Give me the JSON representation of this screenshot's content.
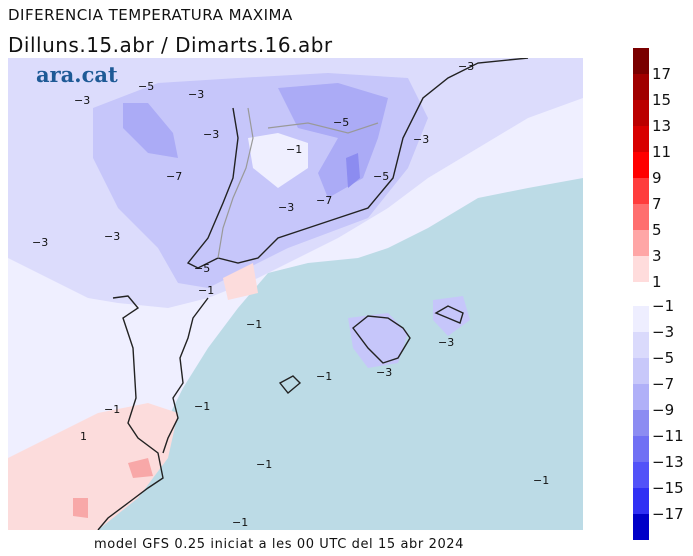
{
  "title": "DIFERENCIA TEMPERATURA MAXIMA",
  "subtitle": "Dilluns.15.abr / Dimarts.16.abr",
  "footer": "model GFS 0.25 iniciat a les 00 UTC del 15 abr 2024",
  "logo": "ara.cat",
  "colors": {
    "sea": "#bcdbe6",
    "n1": "#efefff",
    "n3": "#dcdcfc",
    "n5": "#c6c6fa",
    "n7": "#ababf6",
    "n9": "#8c8cf0",
    "p1": "#fcdcdc",
    "p3": "#f8a8a8",
    "p5": "#f07070"
  },
  "legend": {
    "ticks": [
      "17",
      "15",
      "13",
      "11",
      "9",
      "7",
      "5",
      "3",
      "1",
      "−1",
      "−3",
      "−5",
      "−7",
      "−9",
      "−11",
      "−13",
      "−15",
      "−17"
    ],
    "red_colors": [
      "#7a0000",
      "#a00000",
      "#bb0000",
      "#d80000",
      "#ff0000",
      "#ff3c3c",
      "#ff6e6e",
      "#ffa6a6",
      "#ffdcdc"
    ],
    "blue_colors": [
      "#eeeeff",
      "#dadafc",
      "#c8c8fa",
      "#b0b0f8",
      "#8c8cf2",
      "#7070f4",
      "#5252f8",
      "#3030f4",
      "#0000c8"
    ]
  },
  "contour_labels": [
    "−3",
    "−5",
    "−3",
    "−5",
    "−1",
    "−3",
    "−7",
    "−3",
    "−7",
    "−5",
    "−3",
    "−3",
    "−3",
    "−5",
    "−1",
    "−1",
    "−3",
    "−3",
    "−1",
    "−1",
    "−1",
    "1",
    "−1",
    "−1",
    "−1",
    "−3"
  ]
}
